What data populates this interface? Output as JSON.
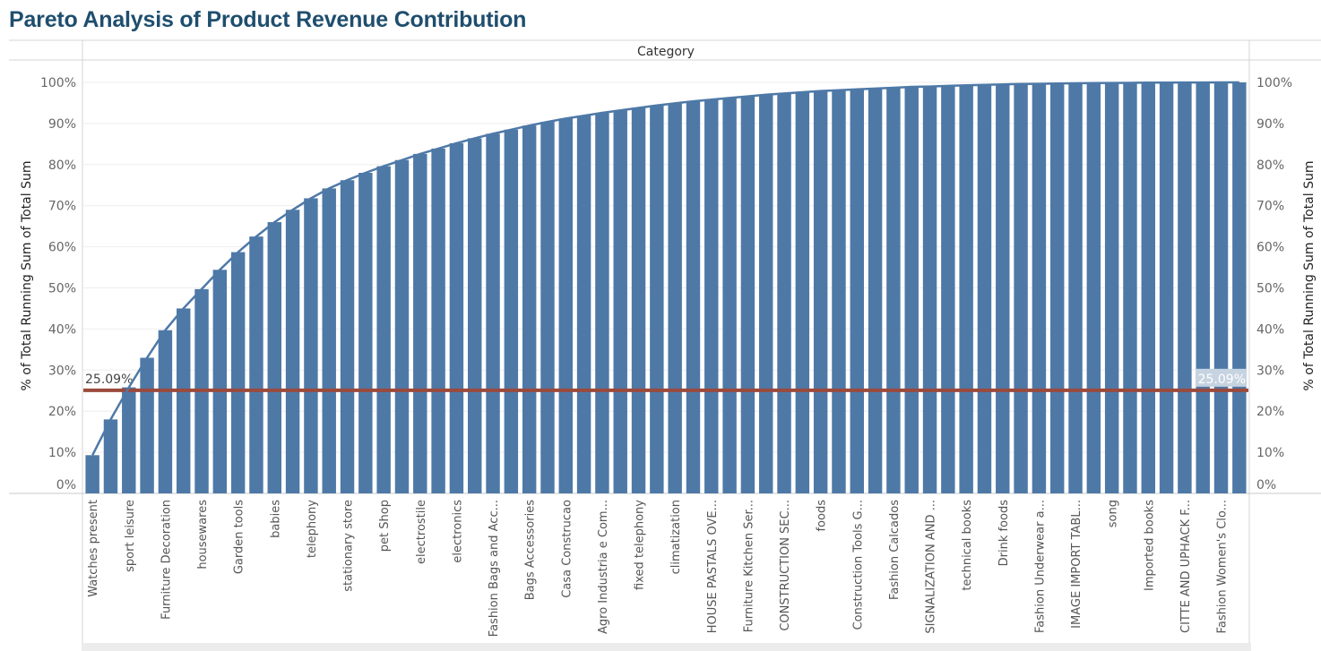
{
  "title": "Pareto Analysis of Product Revenue Contribution",
  "chart_data": {
    "type": "bar",
    "column_header": "Category",
    "ylabel_left": "% of Total Running Sum of Total Sum",
    "ylabel_right": "% of Total Running Sum of Total Sum",
    "ylim": [
      0,
      100
    ],
    "yticks": [
      "0%",
      "10%",
      "20%",
      "30%",
      "40%",
      "50%",
      "60%",
      "70%",
      "80%",
      "90%",
      "100%"
    ],
    "reference_line": {
      "value": 25.09,
      "label": "25.09%",
      "color": "#9b4a3c"
    },
    "bar_color": "#4e79a7",
    "line_color": "#4e79a7",
    "categories": [
      "Watches present",
      "",
      "sport leisure",
      "",
      "Furniture Decoration",
      "",
      "housewares",
      "",
      "Garden tools",
      "",
      "babies",
      "",
      "telephony",
      "",
      "stationary store",
      "",
      "pet Shop",
      "",
      "electrostile",
      "",
      "electronics",
      "",
      "Fashion Bags and Acc...",
      "",
      "Bags Accessories",
      "",
      "Casa Construcao",
      "",
      "Agro Industria e Com...",
      "",
      "fixed telephony",
      "",
      "climatization",
      "",
      "HOUSE PASTALS OVE...",
      "",
      "Furniture Kitchen Ser...",
      "",
      "CONSTRUCTION SEC...",
      "",
      "foods",
      "",
      "Construction Tools G...",
      "",
      "Fashion Calcados",
      "",
      "SIGNALIZATION AND ...",
      "",
      "technical books",
      "",
      "Drink foods",
      "",
      "Fashion Underwear a...",
      "",
      "IMAGE IMPORT TABL...",
      "",
      "song",
      "",
      "Imported books",
      "",
      "CITTE AND UPHACK F...",
      "",
      "Fashion Women's Clo...",
      ""
    ],
    "values": [
      9.3,
      18.0,
      25.8,
      33.0,
      39.7,
      45.0,
      49.7,
      54.4,
      58.7,
      62.5,
      66.0,
      69.0,
      71.8,
      74.2,
      76.2,
      78.0,
      79.6,
      81.1,
      82.6,
      83.9,
      85.2,
      86.4,
      87.5,
      88.5,
      89.5,
      90.4,
      91.2,
      91.9,
      92.6,
      93.2,
      93.8,
      94.4,
      94.9,
      95.4,
      95.8,
      96.2,
      96.6,
      97.0,
      97.3,
      97.6,
      97.9,
      98.1,
      98.3,
      98.5,
      98.7,
      98.9,
      99.0,
      99.15,
      99.3,
      99.4,
      99.5,
      99.6,
      99.66,
      99.72,
      99.78,
      99.83,
      99.87,
      99.9,
      99.93,
      99.95,
      99.97,
      99.98,
      99.99,
      100.0
    ]
  }
}
